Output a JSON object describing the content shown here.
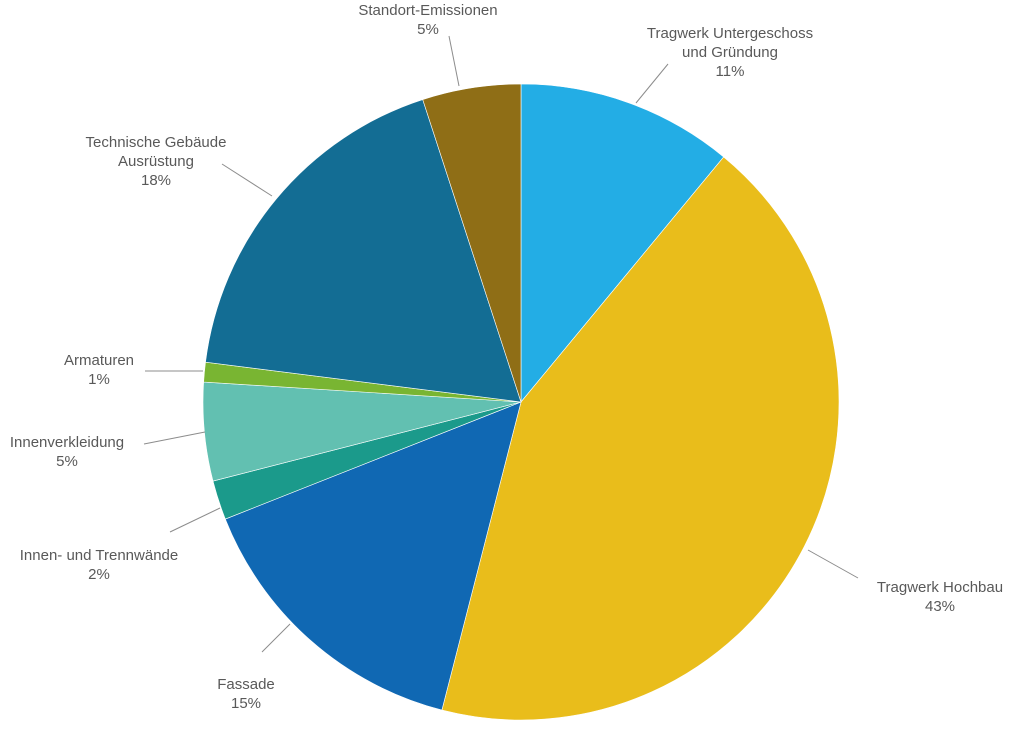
{
  "chart_data": {
    "type": "pie",
    "title": "",
    "start_angle_deg": 0,
    "direction": "clockwise",
    "slices": [
      {
        "label": [
          "Tragwerk Untergeschoss",
          "und Gründung"
        ],
        "pct_label": "11%",
        "value": 11,
        "color": "#23ade5"
      },
      {
        "label": [
          "Tragwerk Hochbau"
        ],
        "pct_label": "43%",
        "value": 43,
        "color": "#e9bd1b"
      },
      {
        "label": [
          "Fassade"
        ],
        "pct_label": "15%",
        "value": 15,
        "color": "#1068b3"
      },
      {
        "label": [
          "Innen- und Trennwände"
        ],
        "pct_label": "2%",
        "value": 2,
        "color": "#1b9a8b"
      },
      {
        "label": [
          "Innenverkleidung"
        ],
        "pct_label": "5%",
        "value": 5,
        "color": "#62c0b1"
      },
      {
        "label": [
          "Armaturen"
        ],
        "pct_label": "1%",
        "value": 1,
        "color": "#79b532"
      },
      {
        "label": [
          "Technische Gebäude",
          "Ausrüstung"
        ],
        "pct_label": "18%",
        "value": 18,
        "color": "#136d94"
      },
      {
        "label": [
          "Standort-Emissionen"
        ],
        "pct_label": "5%",
        "value": 5,
        "color": "#8f6e16"
      }
    ]
  }
}
